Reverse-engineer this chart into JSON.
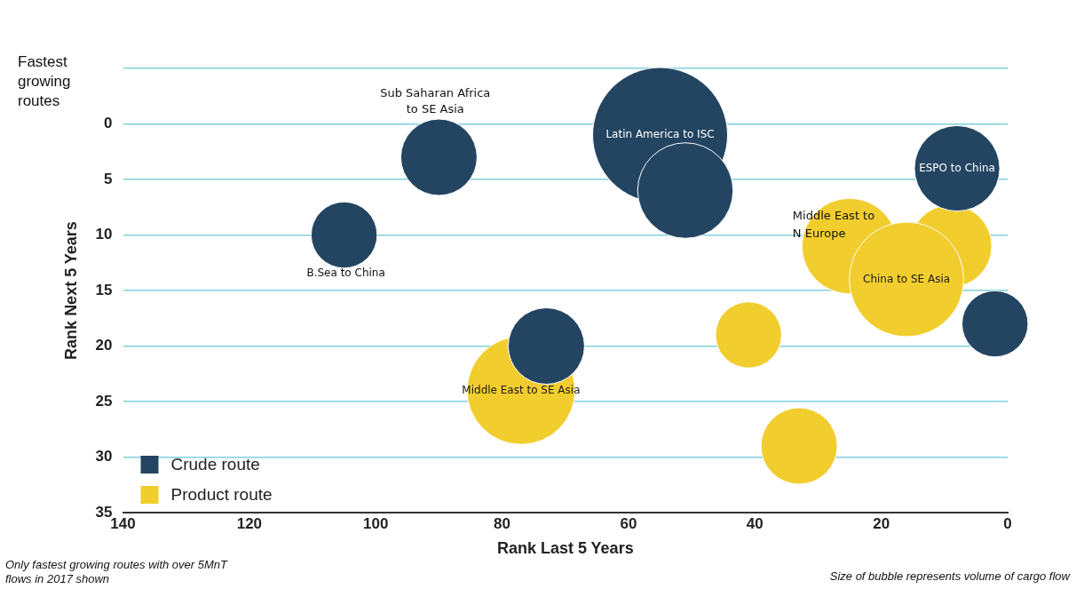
{
  "chart_data": {
    "type": "bubble",
    "xlabel": "Rank Last 5 Years",
    "ylabel": "Rank Next 5 Years",
    "xlim": [
      140,
      0
    ],
    "xticks": [
      140,
      120,
      100,
      80,
      60,
      40,
      20,
      0
    ],
    "ylim": [
      35,
      -5
    ],
    "yticks": [
      {
        "value": -5,
        "label": null
      },
      0,
      5,
      10,
      15,
      20,
      25,
      30,
      35
    ],
    "grid": "y",
    "legend": "bottom left",
    "series": [
      {
        "name": "Crude route",
        "color": "#234561",
        "x": [
          90,
          105,
          55,
          51,
          8,
          2,
          73
        ],
        "values": [
          3,
          10,
          1,
          6,
          4,
          18,
          20
        ],
        "sizes": [
          0.32,
          0.24,
          1,
          0.5,
          0.4,
          0.24,
          0.32
        ]
      },
      {
        "name": "Product route",
        "color": "#f2cd2e",
        "x": [
          77,
          41,
          33,
          25,
          9,
          16
        ],
        "values": [
          24,
          19,
          29,
          11,
          11,
          14
        ],
        "sizes": [
          0.64,
          0.24,
          0.32,
          0.5,
          0.37,
          0.72
        ]
      }
    ],
    "annotations": [
      "Fastest growing routes",
      "Only fastest growing routes with over 5MnT flows in 2017 shown",
      "Size of bubble represents volume of cargo flow",
      "Sub Saharan Africa to SE Asia",
      "Middle East to N Europe",
      "B.Sea to China",
      {
        "text": "Latin America to ISC",
        "x": 55,
        "y": 1
      },
      {
        "text": "ESPO to China",
        "x": 8,
        "y": 4
      },
      {
        "text": "China to SE Asia",
        "x": 16,
        "y": 14
      },
      {
        "text": "Middle East to SE Asia",
        "x": 77,
        "y": 24
      }
    ]
  }
}
